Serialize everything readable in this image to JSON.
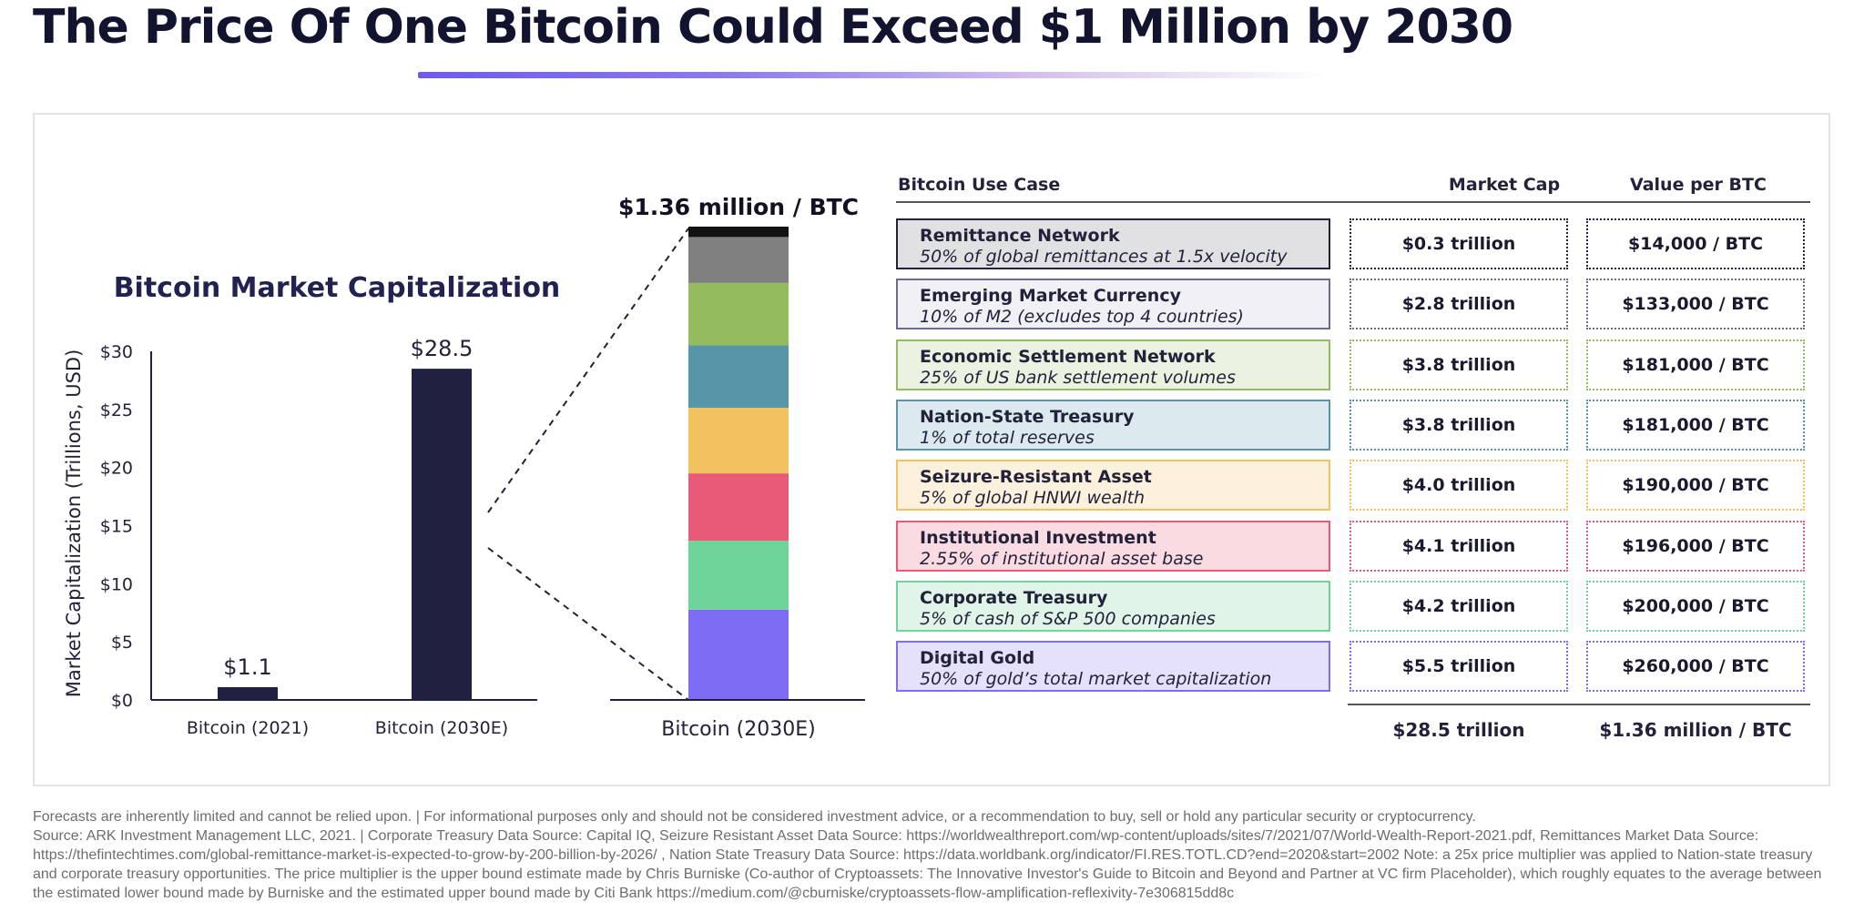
{
  "title": "The Price Of One Bitcoin Could Exceed $1 Million by 2030",
  "colors": {
    "bar": "#202040",
    "segments": [
      "#7d6cf4",
      "#6fd49a",
      "#e85a78",
      "#f2c25e",
      "#5796a8",
      "#94bc5e",
      "#808080"
    ]
  },
  "chart_data": [
    {
      "type": "bar",
      "title": "Bitcoin Market Capitalization",
      "ylabel": "Market Capitalization (Trillions, USD)",
      "categories": [
        "Bitcoin (2021)",
        "Bitcoin (2030E)"
      ],
      "values": [
        1.1,
        28.5
      ],
      "data_labels": [
        "$1.1",
        "$28.5"
      ],
      "ylim": [
        0,
        30
      ],
      "yticks": [
        0,
        5,
        10,
        15,
        20,
        25,
        30
      ],
      "ytick_labels": [
        "$0",
        "$5",
        "$10",
        "$15",
        "$20",
        "$25",
        "$30"
      ],
      "grid": false
    },
    {
      "type": "bar",
      "stacked": true,
      "title": "$1.36 million / BTC",
      "categories": [
        "Bitcoin (2030E)"
      ],
      "series": [
        {
          "name": "Digital Gold",
          "values": [
            5.5
          ]
        },
        {
          "name": "Corporate Treasury",
          "values": [
            4.2
          ]
        },
        {
          "name": "Institutional Investment",
          "values": [
            4.1
          ]
        },
        {
          "name": "Seizure-Resistant Asset",
          "values": [
            4.0
          ]
        },
        {
          "name": "Nation-State Treasury",
          "values": [
            3.8
          ]
        },
        {
          "name": "Economic Settlement Network",
          "values": [
            3.8
          ]
        },
        {
          "name": "Emerging Market Currency",
          "values": [
            2.8
          ]
        },
        {
          "name": "Remittance Network",
          "values": [
            0.3
          ]
        }
      ]
    },
    {
      "type": "table",
      "headers": [
        "Bitcoin Use Case",
        "Market Cap",
        "Value per BTC"
      ],
      "rows": [
        {
          "name": "Remittance Network",
          "desc": "50% of global remittances at 1.5x velocity",
          "cap": "$0.3 trillion",
          "value": "$14,000 / BTC",
          "color": "#e1e1e4",
          "border": "#22223a"
        },
        {
          "name": "Emerging Market Currency",
          "desc": "10% of M2 (excludes top 4 countries)",
          "cap": "$2.8 trillion",
          "value": "$133,000 / BTC",
          "color": "#f1f1f5",
          "border": "#6b6b90"
        },
        {
          "name": "Economic Settlement Network",
          "desc": "25% of US bank settlement volumes",
          "cap": "$3.8 trillion",
          "value": "$181,000 / BTC",
          "color": "#eaf3e0",
          "border": "#94bc5e"
        },
        {
          "name": "Nation-State Treasury",
          "desc": "1% of total reserves",
          "cap": "$3.8 trillion",
          "value": "$181,000 / BTC",
          "color": "#dce9ee",
          "border": "#5796a8"
        },
        {
          "name": "Seizure-Resistant Asset",
          "desc": "5% of global HNWI wealth",
          "cap": "$4.0 trillion",
          "value": "$190,000 / BTC",
          "color": "#fcf1dc",
          "border": "#f2c25e"
        },
        {
          "name": "Institutional Investment",
          "desc": "2.55% of institutional asset base",
          "cap": "$4.1 trillion",
          "value": "$196,000 / BTC",
          "color": "#fadbe1",
          "border": "#e85a78"
        },
        {
          "name": "Corporate Treasury",
          "desc": "5% of cash of S&P 500 companies",
          "cap": "$4.2 trillion",
          "value": "$200,000 / BTC",
          "color": "#e0f5e8",
          "border": "#6fd49a"
        },
        {
          "name": "Digital Gold",
          "desc": "50% of gold’s total market capitalization",
          "cap": "$5.5 trillion",
          "value": "$260,000 / BTC",
          "color": "#e5e0fb",
          "border": "#7d6cf4"
        }
      ],
      "total_cap": "$28.5 trillion",
      "total_value": "$1.36 million / BTC"
    }
  ],
  "footnote": [
    "Forecasts are inherently limited and cannot be relied upon. | For informational purposes only and should not be considered investment advice, or a recommendation to buy, sell or hold any particular security or cryptocurrency.",
    "Source: ARK Investment Management LLC, 2021.  |  Corporate Treasury Data Source: Capital IQ, Seizure Resistant Asset Data Source: https://worldwealthreport.com/wp-content/uploads/sites/7/2021/07/World-Wealth-Report-2021.pdf, Remittances Market Data Source: https://thefintechtimes.com/global-remittance-market-is-expected-to-grow-by-200-billion-by-2026/ , Nation State Treasury Data Source: https://data.worldbank.org/indicator/FI.RES.TOTL.CD?end=2020&start=2002 Note: a 25x price multiplier was applied to Nation-state treasury and corporate treasury opportunities. The price multiplier is  the upper bound estimate made by Chris Burniske (Co-author of Cryptoassets: The Innovative Investor's Guide to Bitcoin and Beyond and Partner at VC firm Placeholder), which roughly equates to the average between the estimated lower bound made by Burniske and the estimated upper bound made by Citi Bank https://medium.com/@cburniske/cryptoassets-flow-amplification-reflexivity-7e306815dd8c"
  ]
}
